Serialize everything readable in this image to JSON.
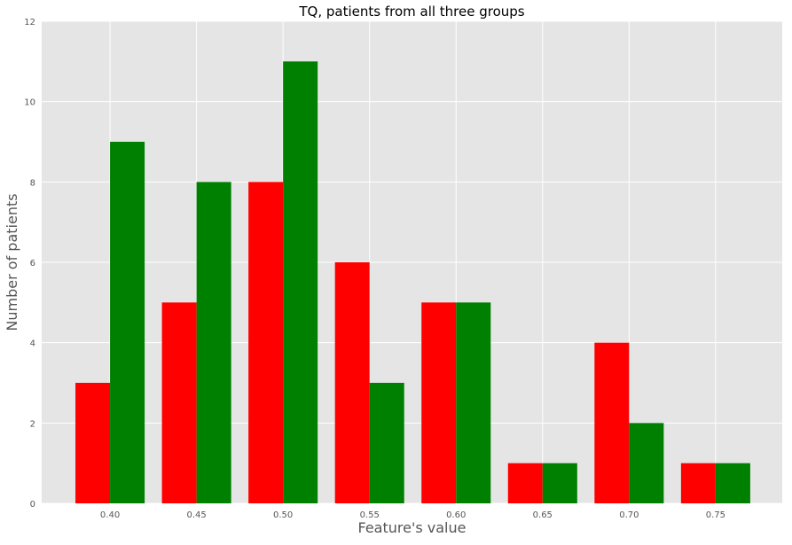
{
  "chart_data": {
    "type": "bar",
    "title": "TQ, patients from all three groups",
    "xlabel": "Feature's value",
    "ylabel": "Number of patients",
    "categories": [
      "0.40",
      "0.45",
      "0.50",
      "0.55",
      "0.60",
      "0.65",
      "0.70",
      "0.75"
    ],
    "series": [
      {
        "values": [
          3,
          5,
          8,
          6,
          5,
          1,
          4,
          1
        ],
        "color": "#ff0000"
      },
      {
        "values": [
          9,
          8,
          11,
          3,
          5,
          1,
          2,
          1
        ],
        "color": "#008000"
      }
    ],
    "x_ticks": [
      0.4,
      0.45,
      0.5,
      0.55,
      0.6,
      0.65,
      0.7,
      0.75
    ],
    "xlim": [
      0.3605,
      0.7885
    ],
    "ylim": [
      0,
      12
    ],
    "y_ticks": [
      0,
      2,
      4,
      6,
      8,
      10,
      12
    ],
    "grid": true,
    "legend": "none",
    "background_color": "#e5e5e5",
    "grid_color": "#ffffff"
  }
}
